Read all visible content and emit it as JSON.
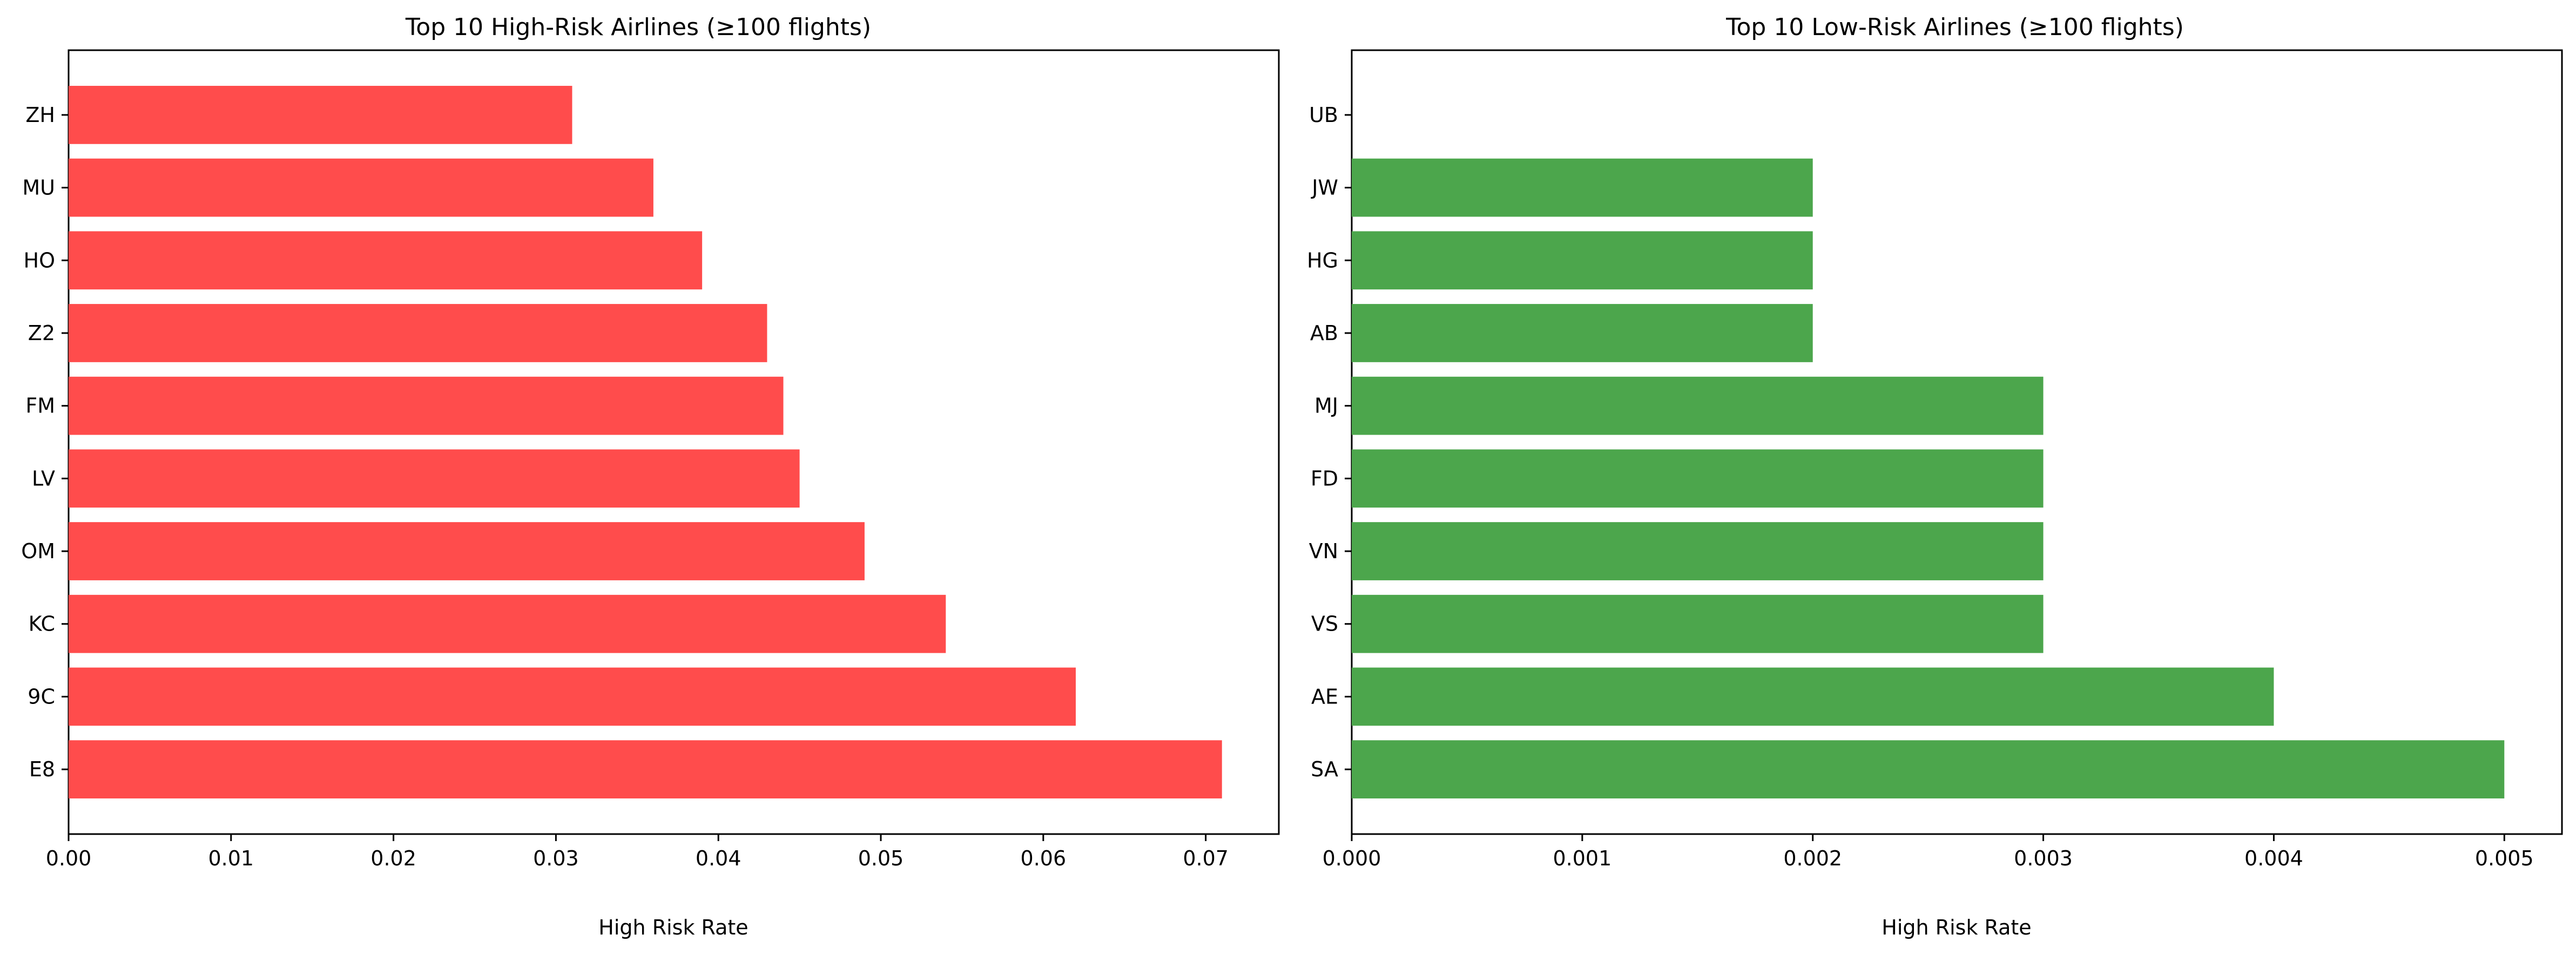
{
  "chart_data": [
    {
      "type": "bar",
      "orientation": "horizontal",
      "title": "Top 10 High-Risk Airlines (≥100 flights)",
      "xlabel": "High Risk Rate",
      "ylabel": "",
      "xlim": [
        0,
        0.0745
      ],
      "xticks": [
        0,
        0.01,
        0.02,
        0.03,
        0.04,
        0.05,
        0.06,
        0.07
      ],
      "xtick_labels": [
        "0.00",
        "0.01",
        "0.02",
        "0.03",
        "0.04",
        "0.05",
        "0.06",
        "0.07"
      ],
      "categories": [
        "E8",
        "9C",
        "KC",
        "OM",
        "LV",
        "FM",
        "Z2",
        "HO",
        "MU",
        "ZH"
      ],
      "values": [
        0.071,
        0.062,
        0.054,
        0.049,
        0.045,
        0.044,
        0.043,
        0.039,
        0.036,
        0.031
      ],
      "bar_color": "#ff4c4c",
      "grid": false,
      "legend": "none"
    },
    {
      "type": "bar",
      "orientation": "horizontal",
      "title": "Top 10 Low-Risk Airlines (≥100 flights)",
      "xlabel": "High Risk Rate",
      "ylabel": "",
      "xlim": [
        0,
        0.00525
      ],
      "xticks": [
        0,
        0.001,
        0.002,
        0.003,
        0.004,
        0.005
      ],
      "xtick_labels": [
        "0.000",
        "0.001",
        "0.002",
        "0.003",
        "0.004",
        "0.005"
      ],
      "categories": [
        "SA",
        "AE",
        "VS",
        "VN",
        "FD",
        "MJ",
        "AB",
        "HG",
        "JW",
        "UB"
      ],
      "values": [
        0.005,
        0.004,
        0.003,
        0.003,
        0.003,
        0.003,
        0.002,
        0.002,
        0.002,
        0.0
      ],
      "bar_color": "#4ca64c",
      "grid": false,
      "legend": "none"
    }
  ]
}
